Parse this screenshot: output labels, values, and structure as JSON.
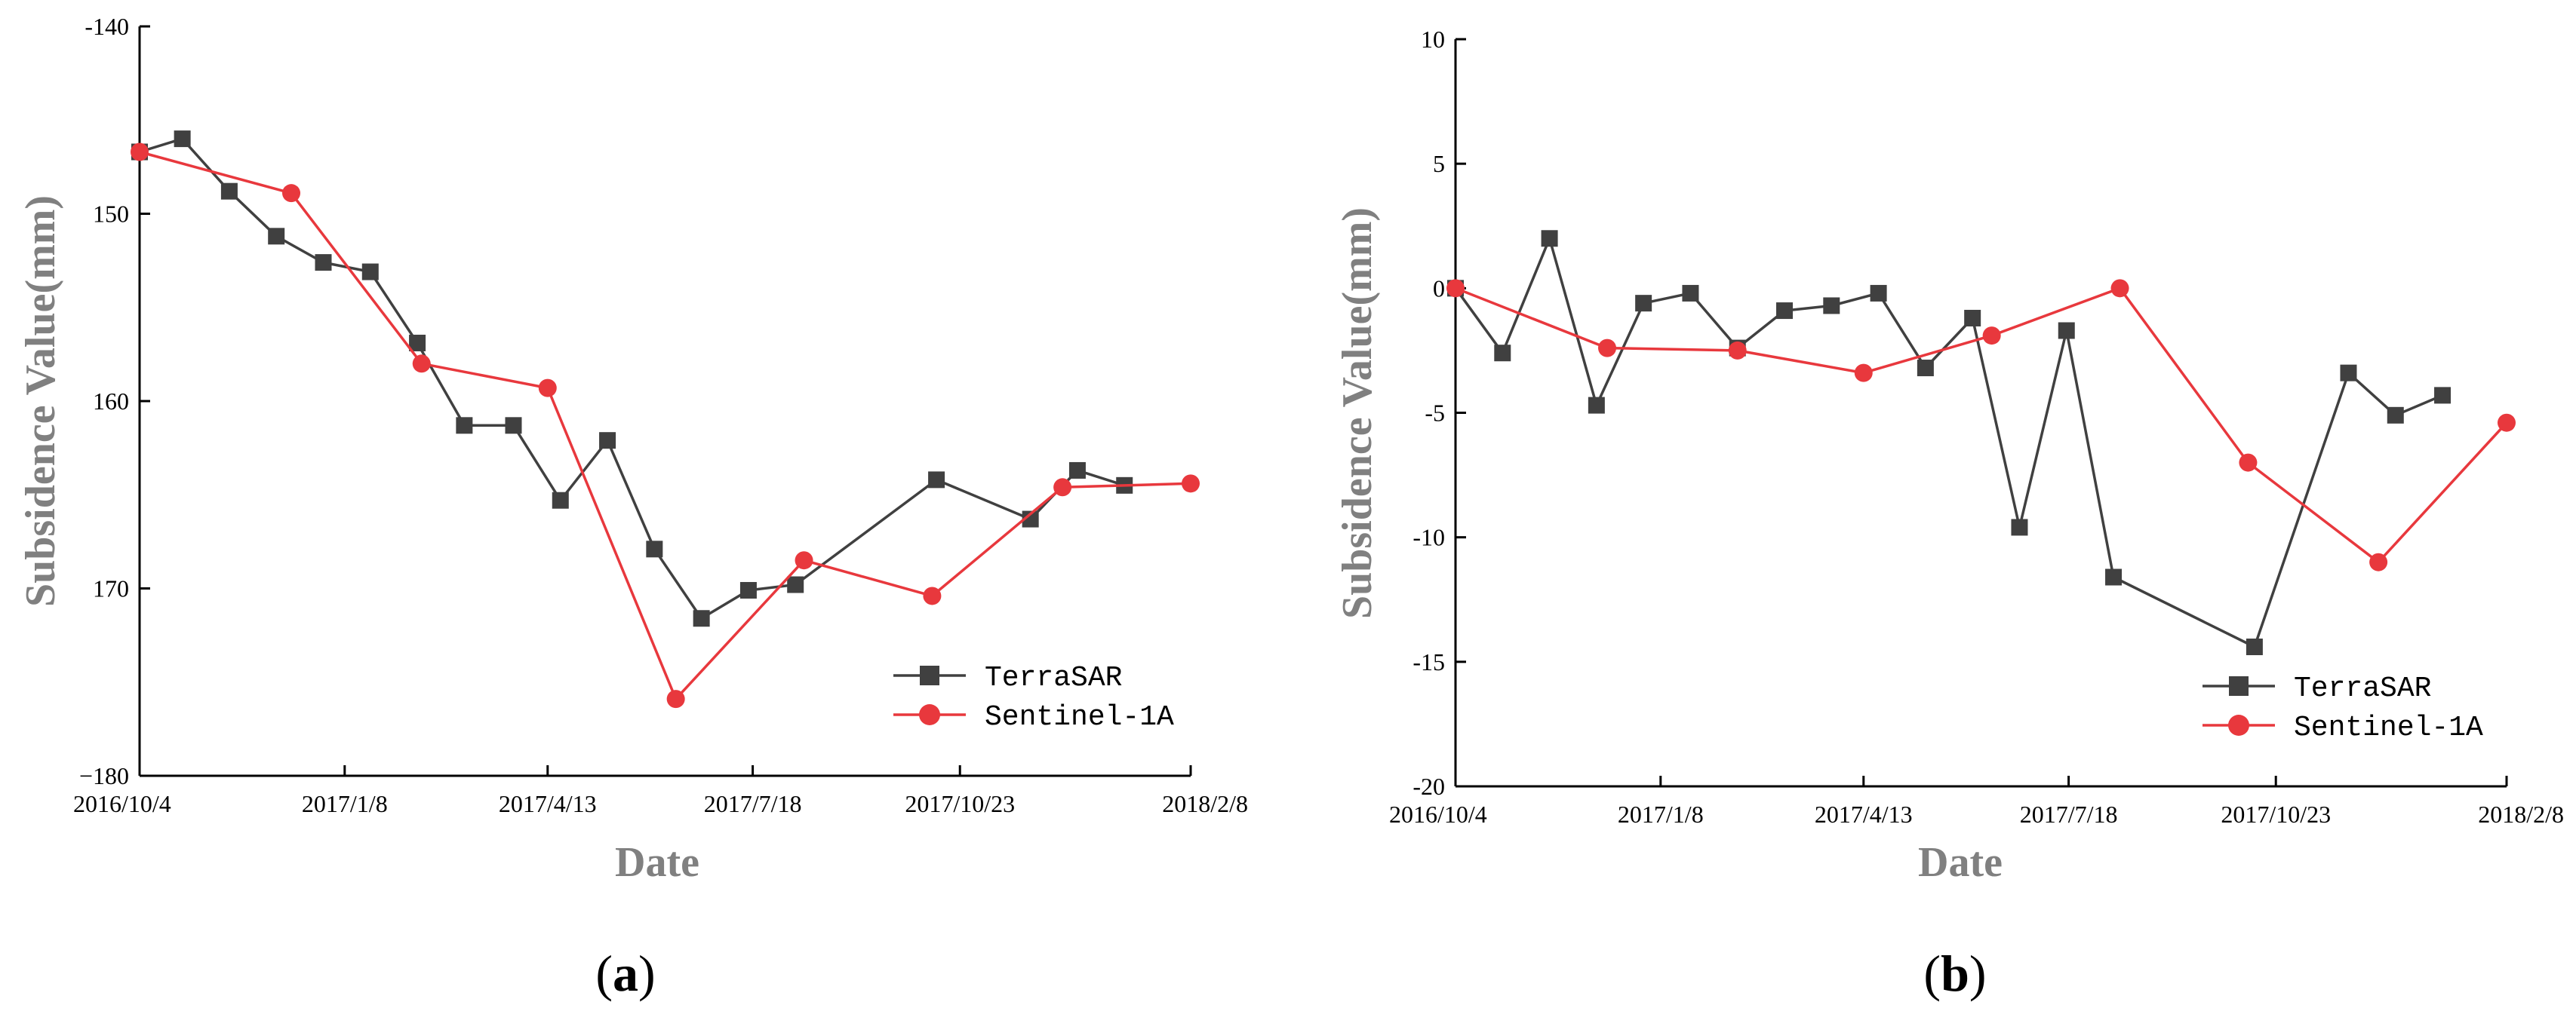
{
  "chart_data": [
    {
      "type": "line",
      "panel_label": "a",
      "xlabel": "Date",
      "ylabel": "Subsidence Value(mm)",
      "x_range_days": [
        0,
        492
      ],
      "x_ticks": [
        {
          "day": 0,
          "label": "2016/10/4"
        },
        {
          "day": 96,
          "label": "2017/1/8"
        },
        {
          "day": 191,
          "label": "2017/4/13"
        },
        {
          "day": 287,
          "label": "2017/7/18"
        },
        {
          "day": 384,
          "label": "2017/10/23"
        },
        {
          "day": 492,
          "label": "2018/2/8"
        }
      ],
      "ylim": [
        -140,
        -180
      ],
      "y_ticks": [
        {
          "value": -140,
          "label": "-140"
        },
        {
          "value": -150,
          "label": "150"
        },
        {
          "value": -160,
          "label": "160"
        },
        {
          "value": -170,
          "label": "170"
        },
        {
          "value": -180,
          "label": "−180"
        }
      ],
      "legend_position": "bottom-right",
      "series": [
        {
          "name": "TerraSAR",
          "color": "#404040",
          "marker": "square",
          "x": [
            0,
            20,
            42,
            64,
            86,
            108,
            130,
            152,
            175,
            197,
            219,
            241,
            263,
            285,
            307,
            373,
            417,
            439,
            461
          ],
          "y": [
            -146.7,
            -146.0,
            -148.8,
            -151.2,
            -152.6,
            -153.1,
            -156.9,
            -161.3,
            -161.3,
            -165.3,
            -162.1,
            -167.9,
            -171.6,
            -170.1,
            -169.8,
            -164.2,
            -166.3,
            -163.7,
            -164.5
          ]
        },
        {
          "name": "Sentinel-1A",
          "color": "#e8383d",
          "marker": "circle",
          "x": [
            0,
            71,
            132,
            191,
            251,
            311,
            371,
            432,
            492
          ],
          "y": [
            -146.7,
            -148.9,
            -158.0,
            -159.3,
            -175.9,
            -168.5,
            -170.4,
            -164.6,
            -164.4
          ]
        }
      ]
    },
    {
      "type": "line",
      "panel_label": "b",
      "xlabel": "Date",
      "ylabel": "Subsidence Value(mm)",
      "x_range_days": [
        0,
        492
      ],
      "x_ticks": [
        {
          "day": 0,
          "label": "2016/10/4"
        },
        {
          "day": 96,
          "label": "2017/1/8"
        },
        {
          "day": 191,
          "label": "2017/4/13"
        },
        {
          "day": 287,
          "label": "2017/7/18"
        },
        {
          "day": 384,
          "label": "2017/10/23"
        },
        {
          "day": 492,
          "label": "2018/2/8"
        }
      ],
      "ylim": [
        10,
        -20
      ],
      "y_ticks": [
        {
          "value": 10,
          "label": "10"
        },
        {
          "value": 5,
          "label": "5"
        },
        {
          "value": 0,
          "label": "0"
        },
        {
          "value": -5,
          "label": "-5"
        },
        {
          "value": -10,
          "label": "-10"
        },
        {
          "value": -15,
          "label": "-15"
        },
        {
          "value": -20,
          "label": "-20"
        }
      ],
      "legend_position": "bottom-right",
      "series": [
        {
          "name": "TerraSAR",
          "color": "#404040",
          "marker": "square",
          "x": [
            0,
            22,
            44,
            66,
            88,
            110,
            132,
            154,
            176,
            198,
            220,
            242,
            264,
            286,
            308,
            374,
            418,
            440,
            462
          ],
          "y": [
            0,
            -2.6,
            2.0,
            -4.7,
            -0.6,
            -0.2,
            -2.4,
            -0.9,
            -0.7,
            -0.2,
            -3.2,
            -1.2,
            -9.6,
            -1.7,
            -11.6,
            -14.4,
            -3.4,
            -5.1,
            -4.3
          ]
        },
        {
          "name": "Sentinel-1A",
          "color": "#e8383d",
          "marker": "circle",
          "x": [
            0,
            71,
            132,
            191,
            251,
            311,
            371,
            432,
            492
          ],
          "y": [
            0,
            -2.4,
            -2.5,
            -3.4,
            -1.9,
            0,
            -7.0,
            -11.0,
            -5.4
          ]
        }
      ]
    }
  ]
}
